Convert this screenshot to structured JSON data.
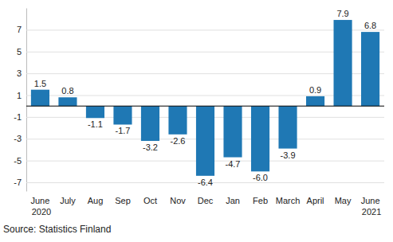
{
  "chart_data": {
    "type": "bar",
    "categories": [
      "June 2020",
      "July",
      "Aug",
      "Sep",
      "Oct",
      "Nov",
      "Dec",
      "Jan",
      "Feb",
      "March",
      "April",
      "May",
      "June 2021"
    ],
    "values": [
      1.5,
      0.8,
      -1.1,
      -1.7,
      -3.2,
      -2.6,
      -6.4,
      -4.7,
      -6.0,
      -3.9,
      0.9,
      7.9,
      6.8
    ],
    "value_labels": [
      "1.5",
      "0.8",
      "-1.1",
      "-1.7",
      "-3.2",
      "-2.6",
      "-6.4",
      "-4.7",
      "-6.0",
      "-3.9",
      "0.9",
      "7.9",
      "6.8"
    ],
    "color": "#1f78b4",
    "ylim": [
      -7.8,
      9
    ],
    "yticks": [
      -7,
      -5,
      -3,
      -1,
      1,
      3,
      5,
      7
    ],
    "grid": true,
    "data_labels": true,
    "source": "Source: Statistics Finland"
  }
}
